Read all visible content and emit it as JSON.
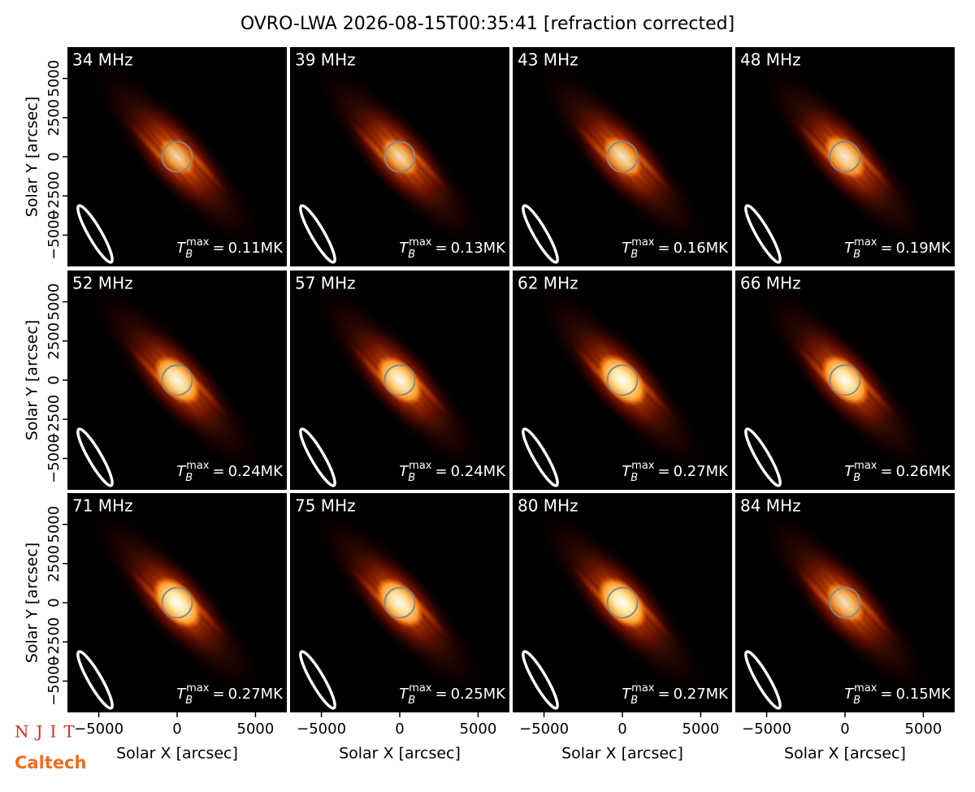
{
  "title": "OVRO-LWA 2026-08-15T00:35:41 [refraction corrected]",
  "logos": [
    "NJIT",
    "Caltech"
  ],
  "tb_label": {
    "base": "T",
    "sub": "B",
    "sup": "max",
    "op": "="
  },
  "chart_data": [
    {
      "type": "image",
      "title": "34 MHz",
      "values": [
        0.11
      ],
      "value_labels": [
        "0.11MK"
      ],
      "xlim": [
        -7000,
        7000
      ],
      "ylim": [
        -7000,
        7000
      ],
      "ylabel": "Solar Y [arcsec]",
      "yticks": [
        {
          "value": -5000,
          "label": "−5000"
        },
        {
          "value": -2500,
          "label": "−2500"
        },
        0,
        2500,
        5000
      ]
    },
    {
      "type": "image",
      "title": "39 MHz",
      "values": [
        0.13
      ],
      "value_labels": [
        "0.13MK"
      ],
      "xlim": [
        -7000,
        7000
      ],
      "ylim": [
        -7000,
        7000
      ]
    },
    {
      "type": "image",
      "title": "43 MHz",
      "values": [
        0.16
      ],
      "value_labels": [
        "0.16MK"
      ],
      "xlim": [
        -7000,
        7000
      ],
      "ylim": [
        -7000,
        7000
      ]
    },
    {
      "type": "image",
      "title": "48 MHz",
      "values": [
        0.19
      ],
      "value_labels": [
        "0.19MK"
      ],
      "xlim": [
        -7000,
        7000
      ],
      "ylim": [
        -7000,
        7000
      ]
    },
    {
      "type": "image",
      "title": "52 MHz",
      "values": [
        0.24
      ],
      "value_labels": [
        "0.24MK"
      ],
      "xlim": [
        -7000,
        7000
      ],
      "ylim": [
        -7000,
        7000
      ],
      "ylabel": "Solar Y [arcsec]",
      "yticks": [
        {
          "value": -5000,
          "label": "−5000"
        },
        {
          "value": -2500,
          "label": "−2500"
        },
        0,
        2500,
        5000
      ]
    },
    {
      "type": "image",
      "title": "57 MHz",
      "values": [
        0.24
      ],
      "value_labels": [
        "0.24MK"
      ],
      "xlim": [
        -7000,
        7000
      ],
      "ylim": [
        -7000,
        7000
      ]
    },
    {
      "type": "image",
      "title": "62 MHz",
      "values": [
        0.27
      ],
      "value_labels": [
        "0.27MK"
      ],
      "xlim": [
        -7000,
        7000
      ],
      "ylim": [
        -7000,
        7000
      ]
    },
    {
      "type": "image",
      "title": "66 MHz",
      "values": [
        0.26
      ],
      "value_labels": [
        "0.26MK"
      ],
      "xlim": [
        -7000,
        7000
      ],
      "ylim": [
        -7000,
        7000
      ]
    },
    {
      "type": "image",
      "title": "71 MHz",
      "values": [
        0.27
      ],
      "value_labels": [
        "0.27MK"
      ],
      "xlim": [
        -7000,
        7000
      ],
      "ylim": [
        -7000,
        7000
      ],
      "ylabel": "Solar Y [arcsec]",
      "yticks": [
        {
          "value": -5000,
          "label": "−5000"
        },
        {
          "value": -2500,
          "label": "−2500"
        },
        0,
        2500,
        5000
      ],
      "xlabel": "Solar X [arcsec]",
      "xticks": [
        {
          "value": -5000,
          "label": "−5000"
        },
        0,
        5000
      ]
    },
    {
      "type": "image",
      "title": "75 MHz",
      "values": [
        0.25
      ],
      "value_labels": [
        "0.25MK"
      ],
      "xlim": [
        -7000,
        7000
      ],
      "ylim": [
        -7000,
        7000
      ],
      "xlabel": "Solar X [arcsec]",
      "xticks": [
        {
          "value": -5000,
          "label": "−5000"
        },
        0,
        5000
      ]
    },
    {
      "type": "image",
      "title": "80 MHz",
      "values": [
        0.27
      ],
      "value_labels": [
        "0.27MK"
      ],
      "xlim": [
        -7000,
        7000
      ],
      "ylim": [
        -7000,
        7000
      ],
      "xlabel": "Solar X [arcsec]",
      "xticks": [
        {
          "value": -5000,
          "label": "−5000"
        },
        0,
        5000
      ]
    },
    {
      "type": "image",
      "title": "84 MHz",
      "values": [
        0.15
      ],
      "value_labels": [
        "0.15MK"
      ],
      "xlim": [
        -7000,
        7000
      ],
      "ylim": [
        -7000,
        7000
      ],
      "xlabel": "Solar X [arcsec]",
      "xticks": [
        {
          "value": -5000,
          "label": "−5000"
        },
        0,
        5000
      ]
    }
  ]
}
